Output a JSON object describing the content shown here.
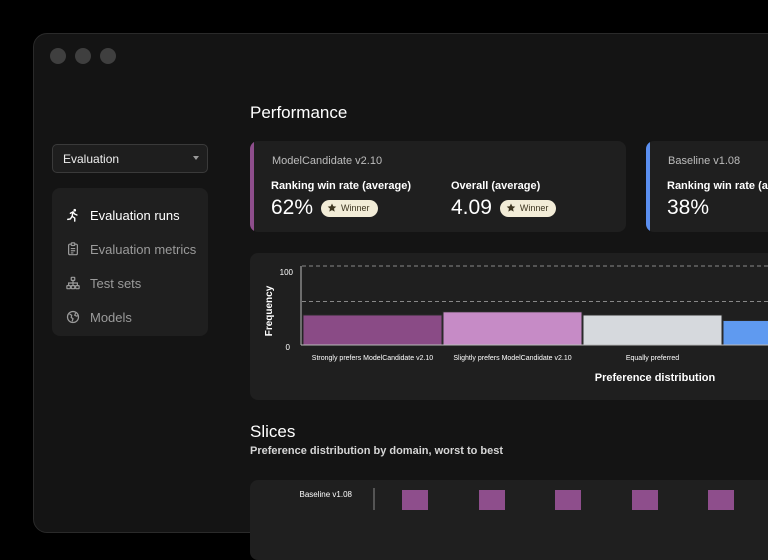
{
  "window": {
    "controls": [
      "close",
      "minimize",
      "maximize"
    ]
  },
  "sidebar": {
    "select_value": "Evaluation",
    "items": [
      {
        "label": "Evaluation runs",
        "icon": "runner-icon",
        "active": true
      },
      {
        "label": "Evaluation metrics",
        "icon": "clipboard-icon",
        "active": false
      },
      {
        "label": "Test sets",
        "icon": "hierarchy-icon",
        "active": false
      },
      {
        "label": "Models",
        "icon": "globe-icon",
        "active": false
      }
    ]
  },
  "performance": {
    "title": "Performance",
    "cards": [
      {
        "name": "ModelCandidate v2.10",
        "accent": "#8e4e8c",
        "metrics": [
          {
            "label": "Ranking win rate (average)",
            "value": "62%",
            "badge": "Winner"
          },
          {
            "label": "Overall (average)",
            "value": "4.09",
            "badge": "Winner"
          }
        ]
      },
      {
        "name": "Baseline v1.08",
        "accent": "#5b8ff0",
        "metrics": [
          {
            "label": "Ranking win rate (average)",
            "value": "38%"
          }
        ]
      }
    ]
  },
  "chart_data": {
    "type": "bar",
    "ylabel": "Frequency",
    "xlabel": "Preference distribution",
    "ylim": [
      0,
      100
    ],
    "yticks": [
      "100",
      "0"
    ],
    "reference_line": 55,
    "categories": [
      "Strongly prefers ModelCandidate v2.10",
      "Slightly prefers ModelCandidate v2.10",
      "Equally preferred",
      "Slightly"
    ],
    "values": [
      38,
      42,
      38,
      31
    ],
    "colors": [
      "#8a4b86",
      "#c68bc6",
      "#d6d9dd",
      "#5f9af0"
    ]
  },
  "slices": {
    "title": "Slices",
    "subtitle": "Preference distribution by domain, worst to best",
    "row_label": "Baseline v1.08"
  },
  "colors": {
    "background": "#141414",
    "card": "#1f1f1f",
    "winner_badge": "#f2ecd7"
  }
}
